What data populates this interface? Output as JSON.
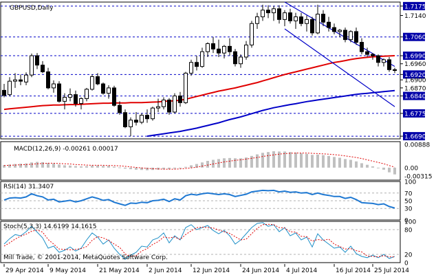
{
  "chart_data": {
    "type": "candlestick",
    "title": "GBPUSD,Daily",
    "copyright": "Mill Trade, © 2001-2014, MetaQuotes Software Corp.",
    "colors": {
      "background": "#ffffff",
      "frame": "#000000",
      "ma_red": "#e00000",
      "ma_blue": "#0000c8",
      "channel": "#0000c8",
      "level_line": "#0000c8",
      "price_tag": "#0000a8",
      "macd_hist": "#c0c0c0",
      "macd_signal": "#e00000",
      "rsi": "#1e78d2",
      "stoch_main": "#1e90c8",
      "stoch_signal": "#e00000"
    },
    "x_labels": [
      {
        "i": 0,
        "label": "29 Apr 2014"
      },
      {
        "i": 8,
        "label": "9 May 2014"
      },
      {
        "i": 17,
        "label": "21 May 2014"
      },
      {
        "i": 26,
        "label": "2 Jun 2014"
      },
      {
        "i": 34,
        "label": "12 Jun 2014"
      },
      {
        "i": 43,
        "label": "24 Jun 2014"
      },
      {
        "i": 51,
        "label": "4 Jul 2014"
      },
      {
        "i": 60,
        "label": "16 Jul 2014"
      },
      {
        "i": 67,
        "label": "25 Jul 2014"
      }
    ],
    "price_axis": {
      "ylim": [
        1.668,
        1.719
      ],
      "labels": [
        "1.7175",
        "1.7140",
        "1.7060",
        "1.6990",
        "1.6960",
        "1.6920",
        "1.6900",
        "1.6870",
        "1.6840",
        "1.6775",
        "1.6690"
      ],
      "tagged": [
        "1.7175",
        "1.7060",
        "1.6990",
        "1.6920",
        "1.6840",
        "1.6775",
        "1.6690"
      ],
      "levels": [
        1.7175,
        1.706,
        1.699,
        1.692,
        1.684,
        1.6775,
        1.669
      ]
    },
    "ohlc": [
      [
        1.6861,
        1.6885,
        1.6835,
        1.6842
      ],
      [
        1.6845,
        1.691,
        1.684,
        1.6895
      ],
      [
        1.6895,
        1.6925,
        1.687,
        1.69
      ],
      [
        1.69,
        1.692,
        1.688,
        1.6895
      ],
      [
        1.6892,
        1.6928,
        1.688,
        1.6918
      ],
      [
        1.6918,
        1.6998,
        1.691,
        1.699
      ],
      [
        1.699,
        1.7,
        1.694,
        1.6955
      ],
      [
        1.6955,
        1.697,
        1.6925,
        1.693
      ],
      [
        1.693,
        1.6945,
        1.6865,
        1.687
      ],
      [
        1.687,
        1.6898,
        1.6852,
        1.6885
      ],
      [
        1.6885,
        1.6895,
        1.6815,
        1.682
      ],
      [
        1.682,
        1.685,
        1.679,
        1.6835
      ],
      [
        1.6835,
        1.6868,
        1.682,
        1.6845
      ],
      [
        1.6845,
        1.686,
        1.68,
        1.6812
      ],
      [
        1.6812,
        1.6835,
        1.679,
        1.683
      ],
      [
        1.683,
        1.687,
        1.682,
        1.6865
      ],
      [
        1.6865,
        1.692,
        1.686,
        1.6912
      ],
      [
        1.6912,
        1.6925,
        1.688,
        1.6885
      ],
      [
        1.6885,
        1.689,
        1.6845,
        1.685
      ],
      [
        1.685,
        1.688,
        1.683,
        1.687
      ],
      [
        1.687,
        1.6878,
        1.68,
        1.6805
      ],
      [
        1.6805,
        1.682,
        1.677,
        1.6778
      ],
      [
        1.6778,
        1.679,
        1.672,
        1.6725
      ],
      [
        1.6725,
        1.676,
        1.669,
        1.675
      ],
      [
        1.675,
        1.678,
        1.673,
        1.6742
      ],
      [
        1.6742,
        1.6775,
        1.6735,
        1.6768
      ],
      [
        1.6768,
        1.679,
        1.674,
        1.6755
      ],
      [
        1.6755,
        1.68,
        1.6748,
        1.6795
      ],
      [
        1.6795,
        1.683,
        1.678,
        1.68
      ],
      [
        1.68,
        1.6835,
        1.679,
        1.6825
      ],
      [
        1.6825,
        1.6832,
        1.677,
        1.678
      ],
      [
        1.678,
        1.685,
        1.6775,
        1.684
      ],
      [
        1.684,
        1.6855,
        1.68,
        1.6815
      ],
      [
        1.6815,
        1.693,
        1.681,
        1.6925
      ],
      [
        1.6925,
        1.6975,
        1.6915,
        1.6965
      ],
      [
        1.6965,
        1.699,
        1.6935,
        1.695
      ],
      [
        1.695,
        1.702,
        1.6945,
        1.7005
      ],
      [
        1.7005,
        1.704,
        1.6985,
        1.7035
      ],
      [
        1.7035,
        1.706,
        1.7,
        1.7015
      ],
      [
        1.7015,
        1.705,
        1.6985,
        1.7
      ],
      [
        1.7,
        1.703,
        1.698,
        1.7025
      ],
      [
        1.7025,
        1.7055,
        1.699,
        1.7005
      ],
      [
        1.7005,
        1.7015,
        1.695,
        1.696
      ],
      [
        1.696,
        1.6995,
        1.6945,
        1.6985
      ],
      [
        1.6985,
        1.7045,
        1.6975,
        1.703
      ],
      [
        1.703,
        1.712,
        1.702,
        1.711
      ],
      [
        1.711,
        1.715,
        1.709,
        1.7135
      ],
      [
        1.7135,
        1.718,
        1.712,
        1.716
      ],
      [
        1.716,
        1.7178,
        1.713,
        1.715
      ],
      [
        1.715,
        1.7175,
        1.712,
        1.7165
      ],
      [
        1.7165,
        1.7178,
        1.711,
        1.7125
      ],
      [
        1.7125,
        1.716,
        1.71,
        1.715
      ],
      [
        1.715,
        1.7165,
        1.711,
        1.712
      ],
      [
        1.712,
        1.715,
        1.709,
        1.7135
      ],
      [
        1.7135,
        1.715,
        1.71,
        1.711
      ],
      [
        1.711,
        1.714,
        1.708,
        1.7125
      ],
      [
        1.7125,
        1.7135,
        1.7065,
        1.7075
      ],
      [
        1.7075,
        1.718,
        1.707,
        1.7145
      ],
      [
        1.7145,
        1.716,
        1.71,
        1.7115
      ],
      [
        1.7115,
        1.7135,
        1.708,
        1.7095
      ],
      [
        1.7095,
        1.711,
        1.707,
        1.708
      ],
      [
        1.708,
        1.709,
        1.706,
        1.7085
      ],
      [
        1.7085,
        1.7095,
        1.704,
        1.705
      ],
      [
        1.705,
        1.7085,
        1.704,
        1.708
      ],
      [
        1.708,
        1.7095,
        1.703,
        1.704
      ],
      [
        1.704,
        1.7055,
        1.6995,
        1.7005
      ],
      [
        1.7005,
        1.702,
        1.6985,
        1.6995
      ],
      [
        1.6995,
        1.7,
        1.6975,
        1.699
      ],
      [
        1.699,
        1.6995,
        1.695,
        1.6965
      ],
      [
        1.6965,
        1.698,
        1.695,
        1.6975
      ],
      [
        1.6975,
        1.6985,
        1.693,
        1.6938
      ],
      [
        1.6938,
        1.6945,
        1.6925,
        1.6935
      ]
    ],
    "ma_red": [
      1.679,
      1.6792,
      1.6794,
      1.6796,
      1.6798,
      1.68,
      1.6802,
      1.6804,
      1.6805,
      1.6806,
      1.6806,
      1.6807,
      1.6808,
      1.6808,
      1.6809,
      1.681,
      1.6811,
      1.6812,
      1.6813,
      1.6813,
      1.6814,
      1.6814,
      1.6814,
      1.6815,
      1.6815,
      1.6815,
      1.6816,
      1.6817,
      1.6818,
      1.682,
      1.6821,
      1.6822,
      1.6824,
      1.6828,
      1.6833,
      1.6838,
      1.6843,
      1.6848,
      1.6853,
      1.6858,
      1.6862,
      1.6866,
      1.687,
      1.6875,
      1.688,
      1.6885,
      1.689,
      1.6896,
      1.6902,
      1.6908,
      1.6914,
      1.692,
      1.6925,
      1.693,
      1.6935,
      1.694,
      1.6945,
      1.695,
      1.6955,
      1.696,
      1.6965,
      1.6968,
      1.6972,
      1.6976,
      1.6979,
      1.6982,
      1.6984,
      1.6986,
      1.6987,
      1.6988,
      1.6989,
      1.699
    ],
    "ma_blue": [
      null,
      null,
      null,
      null,
      null,
      null,
      null,
      null,
      null,
      null,
      null,
      null,
      null,
      null,
      null,
      null,
      null,
      null,
      null,
      null,
      null,
      null,
      null,
      null,
      null,
      null,
      1.669,
      1.6693,
      1.6696,
      1.6699,
      1.6702,
      1.6705,
      1.6708,
      1.6712,
      1.6716,
      1.672,
      1.6725,
      1.673,
      1.6735,
      1.674,
      1.6746,
      1.6752,
      1.6757,
      1.6762,
      1.6768,
      1.6774,
      1.678,
      1.6786,
      1.6791,
      1.6796,
      1.68,
      1.6804,
      1.6808,
      1.6811,
      1.6815,
      1.6819,
      1.6822,
      1.6825,
      1.6828,
      1.6831,
      1.6834,
      1.6837,
      1.684,
      1.6843,
      1.6846,
      1.6848,
      1.685,
      1.6852,
      1.6854,
      1.6856,
      1.6858,
      1.686
    ],
    "channel": {
      "upper": [
        [
          51,
          1.719
        ],
        [
          71,
          1.695
        ]
      ],
      "lower": [
        [
          51,
          1.709
        ],
        [
          71,
          1.68
        ]
      ]
    },
    "macd": {
      "label": "MACD(12,26,9) -0.00261 0.00017",
      "ylim": [
        -0.0048,
        0.01
      ],
      "axis_labels": [
        "0.00888",
        "0.00",
        "-0.00315"
      ],
      "main": [
        0.001,
        0.0012,
        0.0014,
        0.0015,
        0.0016,
        0.002,
        0.0022,
        0.0021,
        0.0018,
        0.0016,
        0.0012,
        0.0009,
        0.0008,
        0.0006,
        0.0005,
        0.0006,
        0.0008,
        0.0008,
        0.0007,
        0.0007,
        0.0004,
        0.0001,
        -0.0004,
        -0.0006,
        -0.0008,
        -0.0009,
        -0.001,
        -0.0009,
        -0.0008,
        -0.0006,
        -0.0006,
        -0.0004,
        -0.0003,
        0.0003,
        0.0009,
        0.0014,
        0.002,
        0.0026,
        0.003,
        0.0033,
        0.0036,
        0.0037,
        0.0036,
        0.0036,
        0.0039,
        0.0045,
        0.0051,
        0.0057,
        0.006,
        0.0063,
        0.0062,
        0.0062,
        0.006,
        0.0058,
        0.0055,
        0.0053,
        0.0049,
        0.005,
        0.0048,
        0.0045,
        0.0041,
        0.0038,
        0.0033,
        0.003,
        0.0024,
        0.0017,
        0.0011,
        0.0005,
        -0.0002,
        -0.0008,
        -0.0018,
        -0.0026
      ],
      "signal": [
        0.0008,
        0.0009,
        0.001,
        0.0011,
        0.0012,
        0.0013,
        0.0015,
        0.0016,
        0.0017,
        0.0017,
        0.0016,
        0.0015,
        0.0014,
        0.0012,
        0.0011,
        0.001,
        0.0009,
        0.0009,
        0.0009,
        0.0008,
        0.0008,
        0.0007,
        0.0005,
        0.0003,
        0.0001,
        -0.0001,
        -0.0003,
        -0.0004,
        -0.0005,
        -0.0006,
        -0.0006,
        -0.0006,
        -0.0005,
        -0.0003,
        -0.0001,
        0.0002,
        0.0006,
        0.001,
        0.0014,
        0.0018,
        0.0022,
        0.0025,
        0.0028,
        0.003,
        0.0033,
        0.0036,
        0.0039,
        0.0043,
        0.0046,
        0.0049,
        0.0052,
        0.0054,
        0.0055,
        0.0056,
        0.0056,
        0.0056,
        0.0055,
        0.0054,
        0.0053,
        0.0052,
        0.005,
        0.0048,
        0.0045,
        0.0042,
        0.0039,
        0.0035,
        0.003,
        0.0025,
        0.002,
        0.0015,
        0.0008,
        0.0002
      ]
    },
    "rsi": {
      "label": "RSI(14) 31.3407",
      "ylim": [
        0,
        100
      ],
      "axis_labels": [
        "100",
        "70",
        "50",
        "30",
        "0"
      ],
      "levels": [
        70,
        50,
        30
      ],
      "values": [
        52,
        57,
        58,
        57,
        60,
        68,
        63,
        60,
        52,
        54,
        47,
        49,
        51,
        47,
        50,
        55,
        60,
        56,
        51,
        53,
        46,
        42,
        38,
        44,
        43,
        46,
        45,
        50,
        51,
        54,
        48,
        55,
        52,
        63,
        67,
        65,
        68,
        70,
        68,
        66,
        68,
        66,
        61,
        64,
        67,
        73,
        75,
        77,
        76,
        77,
        73,
        75,
        72,
        73,
        70,
        71,
        66,
        70,
        66,
        64,
        61,
        61,
        56,
        59,
        53,
        45,
        44,
        43,
        40,
        42,
        35,
        31
      ]
    },
    "stoch": {
      "label": "Stoch(5,3,3) 14.6199 14.1615",
      "ylim": [
        0,
        100
      ],
      "axis_labels": [
        "100",
        "80",
        "20",
        "0"
      ],
      "levels": [
        80,
        20
      ],
      "main": [
        45,
        58,
        68,
        65,
        75,
        88,
        74,
        60,
        35,
        40,
        25,
        30,
        38,
        28,
        35,
        55,
        72,
        62,
        45,
        55,
        35,
        20,
        8,
        18,
        25,
        40,
        38,
        55,
        60,
        72,
        48,
        65,
        55,
        85,
        92,
        80,
        85,
        90,
        78,
        70,
        78,
        65,
        45,
        55,
        70,
        85,
        95,
        97,
        88,
        92,
        75,
        85,
        65,
        72,
        55,
        62,
        38,
        70,
        55,
        45,
        35,
        38,
        25,
        40,
        22,
        15,
        12,
        18,
        12,
        20,
        10,
        15
      ],
      "signal": [
        40,
        48,
        57,
        64,
        69,
        76,
        79,
        74,
        56,
        45,
        33,
        32,
        31,
        32,
        34,
        39,
        54,
        63,
        60,
        54,
        45,
        37,
        21,
        15,
        17,
        28,
        34,
        44,
        51,
        62,
        60,
        62,
        56,
        68,
        77,
        85,
        86,
        85,
        84,
        79,
        75,
        71,
        63,
        55,
        57,
        70,
        83,
        92,
        93,
        92,
        85,
        84,
        75,
        74,
        64,
        63,
        52,
        56,
        54,
        57,
        45,
        39,
        33,
        34,
        29,
        26,
        16,
        15,
        14,
        17,
        14,
        14
      ]
    }
  }
}
